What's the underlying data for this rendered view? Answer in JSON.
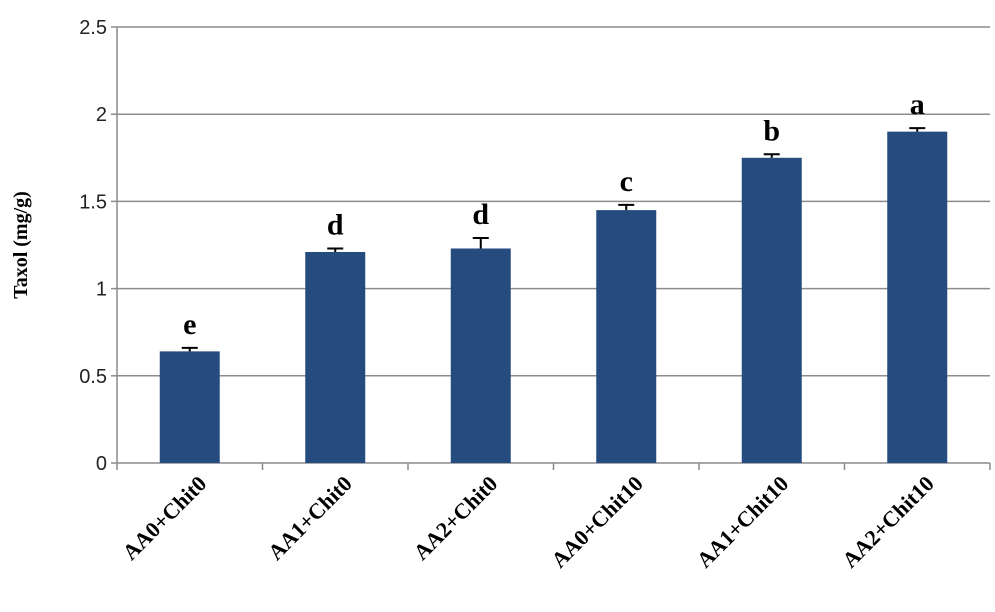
{
  "chart_data": {
    "type": "bar",
    "categories": [
      "AA0+Chit0",
      "AA1+Chit0",
      "AA2+Chit0",
      "AA0+Chit10",
      "AA1+Chit10",
      "AA2+Chit10"
    ],
    "series": [
      {
        "values": [
          0.64,
          1.21,
          1.23,
          1.45,
          1.75,
          1.9
        ],
        "errors": [
          0.02,
          0.02,
          0.06,
          0.03,
          0.02,
          0.02
        ],
        "color": "#254B7F"
      }
    ],
    "significance_labels": [
      "e",
      "d",
      "d",
      "c",
      "b",
      "a"
    ],
    "title": "",
    "xlabel": "",
    "ylabel": "Taxol (mg/g)",
    "ylim": [
      0,
      2.5
    ],
    "yticks": [
      "0",
      "0.5",
      "1",
      "1.5",
      "2",
      "2.5"
    ],
    "ytick_values": [
      0,
      0.5,
      1,
      1.5,
      2,
      2.5
    ],
    "grid": true,
    "legend": "none"
  }
}
